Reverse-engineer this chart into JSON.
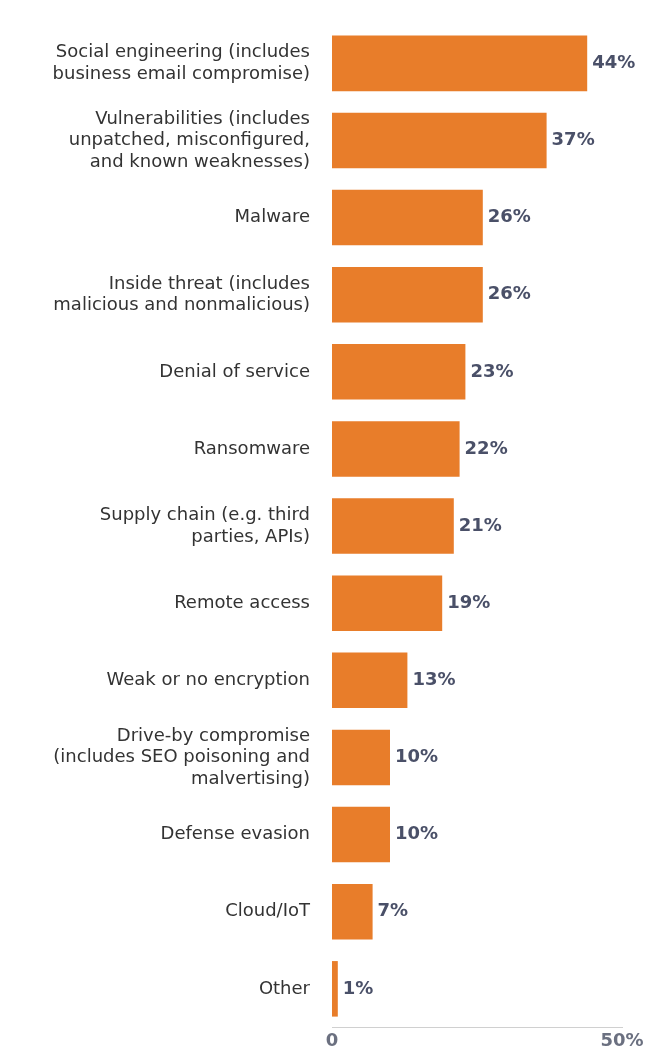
{
  "chart_data": {
    "type": "bar",
    "orientation": "horizontal",
    "categories": [
      "Social engineering (includes business email compromise)",
      "Vulnerabilities (includes unpatched, misconfigured, and known weaknesses)",
      "Malware",
      "Inside threat (includes malicious and nonmalicious)",
      "Denial of service",
      "Ransomware",
      "Supply chain (e.g. third parties, APIs)",
      "Remote access",
      "Weak or no encryption",
      "Drive-by compromise (includes SEO poisoning and malvertising)",
      "Defense evasion",
      "Cloud/IoT",
      "Other"
    ],
    "values": [
      44,
      37,
      26,
      26,
      23,
      22,
      21,
      19,
      13,
      10,
      10,
      7,
      1
    ],
    "value_labels": [
      "44%",
      "37%",
      "26%",
      "26%",
      "23%",
      "22%",
      "21%",
      "19%",
      "13%",
      "10%",
      "10%",
      "7%",
      "1%"
    ],
    "color": "#e87d2a",
    "xlim": [
      0,
      50
    ],
    "xticks": [
      0,
      {
        "value": 50,
        "label": "50%"
      }
    ],
    "grid": false,
    "legend": false
  }
}
